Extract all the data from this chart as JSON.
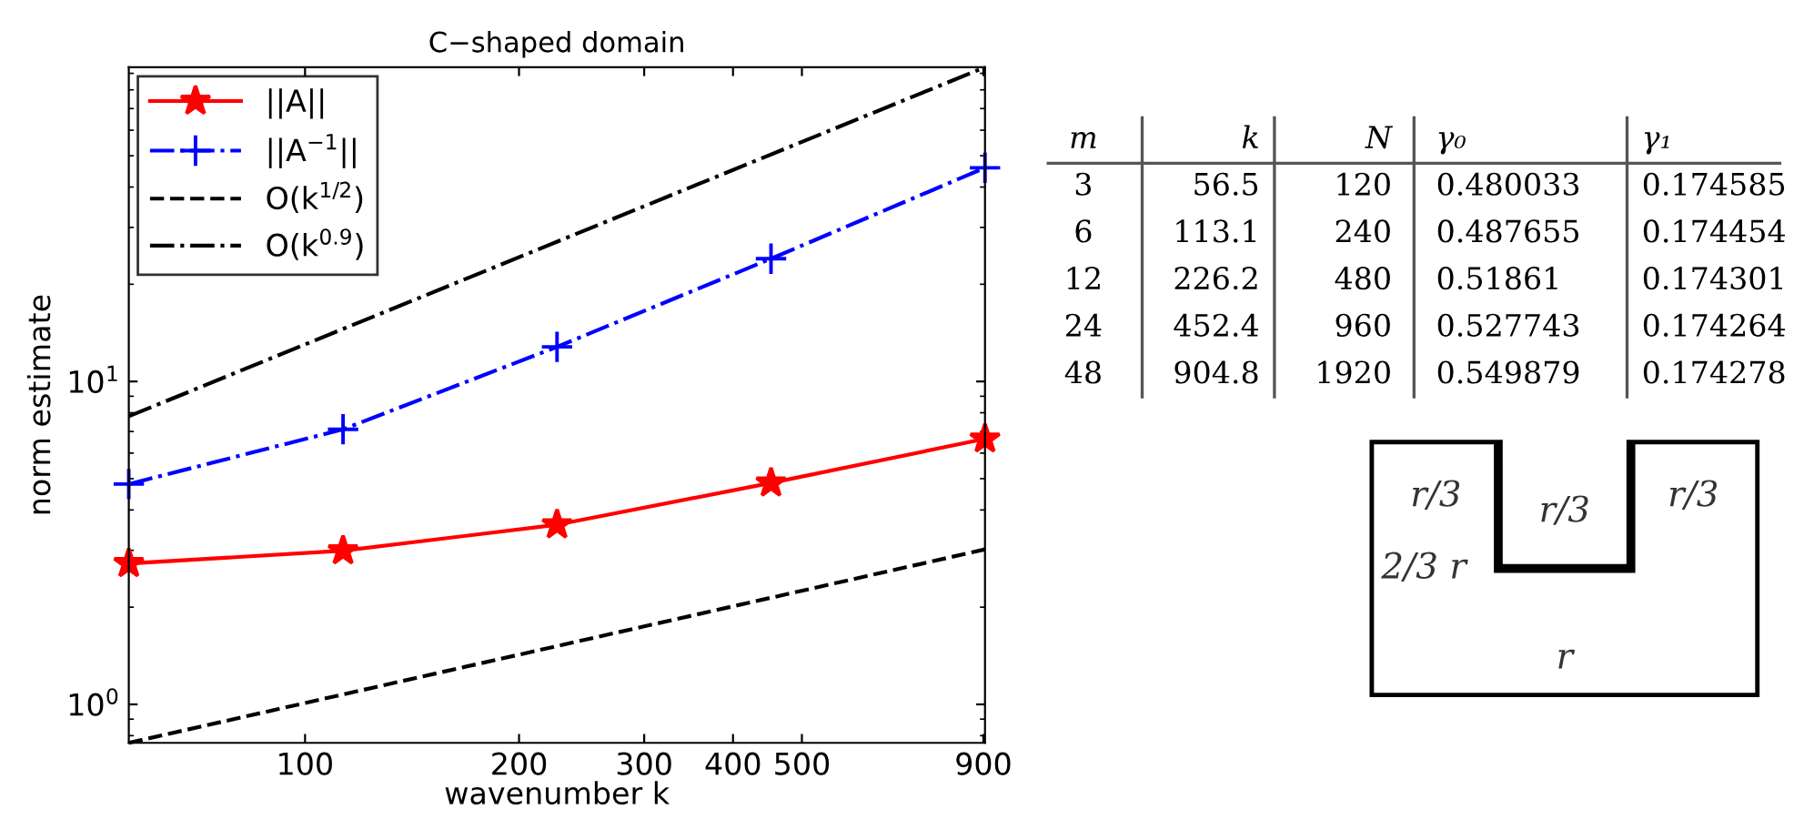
{
  "chart_data": [
    {
      "type": "line",
      "title": "C−shaped domain",
      "xlabel": "wavenumber k",
      "ylabel": "norm estimate",
      "log": "xy",
      "grid": false,
      "legend": "top left",
      "xlim": [
        56.5,
        904.8
      ],
      "ylim": [
        0.76,
        94
      ],
      "xticks": [
        100,
        200,
        300,
        400,
        500,
        900
      ],
      "yticks": [
        {
          "value": 1,
          "label": "10$^{0}$"
        },
        {
          "value": 10,
          "label": "10$^{1}$"
        }
      ],
      "series": [
        {
          "name": "||A||",
          "color": "#ff0000",
          "marker": "star",
          "line_style": "solid",
          "x": [
            56.5,
            113.1,
            226.2,
            452.4,
            904.8
          ],
          "values": [
            2.73,
            2.99,
            3.6,
            4.85,
            6.64
          ]
        },
        {
          "name": "||A$^{−1}$||",
          "color": "#0000ff",
          "marker": "cross",
          "line_style": "dashdot",
          "x": [
            56.5,
            113.1,
            226.2,
            452.4,
            904.8
          ],
          "values": [
            4.81,
            7.11,
            12.8,
            24.0,
            45.9
          ]
        },
        {
          "name": "O(k$^{1/2}$)",
          "color": "#000000",
          "marker": "none",
          "line_style": "dashed",
          "x": [
            56.5,
            904.8
          ],
          "values": [
            0.76,
            3.02
          ]
        },
        {
          "name": "O(k$^{0.9}$)",
          "color": "#000000",
          "marker": "none",
          "line_style": "dashdot",
          "x": [
            56.5,
            904.8
          ],
          "values": [
            7.8,
            94
          ]
        }
      ]
    },
    {
      "type": "other",
      "categories": [
        "m",
        "k",
        "N",
        "γ₀",
        "γ₁"
      ],
      "cell_labels": [
        [
          "3",
          "56.5",
          "120",
          "0.480033",
          "0.174585"
        ],
        [
          "6",
          "113.1",
          "240",
          "0.487655",
          "0.174454"
        ],
        [
          "12",
          "226.2",
          "480",
          "0.51861",
          "0.174301"
        ],
        [
          "24",
          "452.4",
          "960",
          "0.527743",
          "0.174264"
        ],
        [
          "48",
          "904.8",
          "1920",
          "0.549879",
          "0.174278"
        ]
      ]
    },
    {
      "type": "other",
      "annotations": [
        "r/3",
        "r/3",
        "r/3",
        "2/3 r",
        "r"
      ]
    }
  ]
}
